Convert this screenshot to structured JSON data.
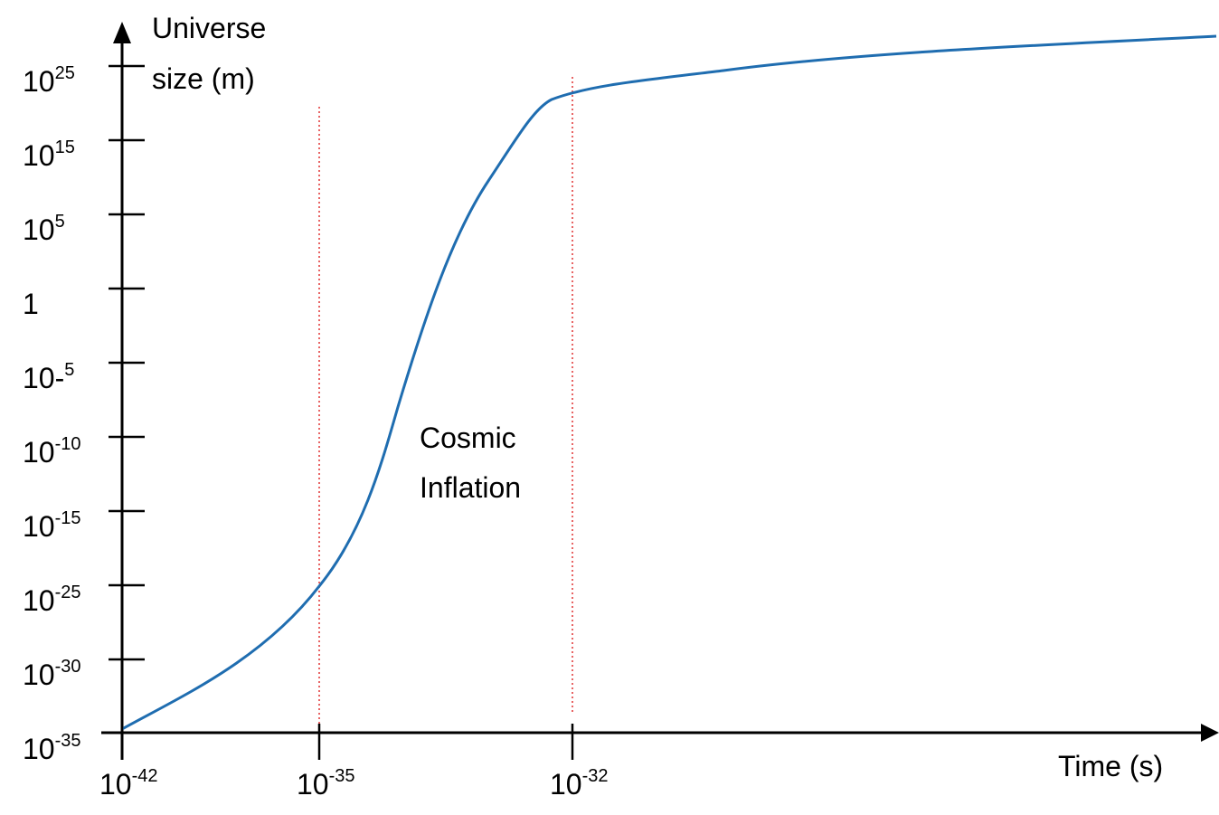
{
  "y_axis": {
    "label_lines": [
      "Universe",
      "size  (m)"
    ],
    "ticks": [
      {
        "base": "10",
        "exp": "25"
      },
      {
        "base": "10",
        "exp": "15"
      },
      {
        "base": "10",
        "exp": "5"
      },
      {
        "base": "1"
      },
      {
        "base": "10-",
        "exp": "5"
      },
      {
        "base": "10",
        "exp": "-10"
      },
      {
        "base": "10",
        "exp": "-15"
      },
      {
        "base": "10",
        "exp": "-25"
      },
      {
        "base": "10",
        "exp": "-30"
      },
      {
        "base": "10",
        "exp": "-35"
      }
    ]
  },
  "x_axis": {
    "label": "Time (s)",
    "ticks": [
      {
        "base": "10",
        "exp": "-42"
      },
      {
        "base": "10",
        "exp": "-35"
      },
      {
        "base": "10",
        "exp": "-32"
      }
    ]
  },
  "annotation": {
    "lines": [
      "Cosmic",
      "Inflation"
    ]
  }
}
